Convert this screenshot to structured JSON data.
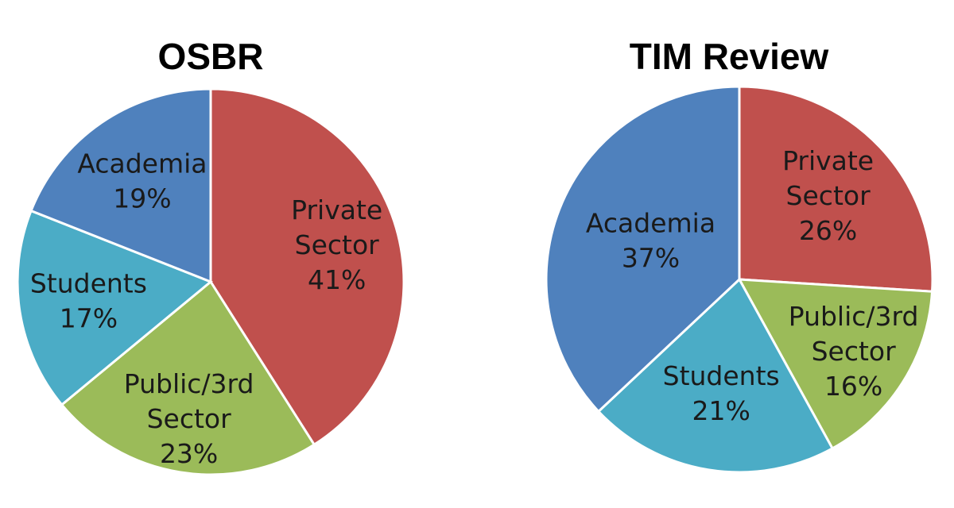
{
  "chart_data": [
    {
      "type": "pie",
      "title": "OSBR",
      "slices": [
        {
          "label_lines": [
            "Private",
            "Sector",
            "41%"
          ],
          "name": "Private Sector",
          "value": 41,
          "color": "#c0504d"
        },
        {
          "label_lines": [
            "Public/3rd",
            "Sector",
            "23%"
          ],
          "name": "Public/3rd Sector",
          "value": 23,
          "color": "#9bbb59"
        },
        {
          "label_lines": [
            "Students",
            "17%"
          ],
          "name": "Students",
          "value": 17,
          "color": "#4bacc6"
        },
        {
          "label_lines": [
            "Academia",
            "19%"
          ],
          "name": "Academia",
          "value": 19,
          "color": "#4f81bd"
        }
      ]
    },
    {
      "type": "pie",
      "title": "TIM Review",
      "slices": [
        {
          "label_lines": [
            "Private",
            "Sector",
            "26%"
          ],
          "name": "Private Sector",
          "value": 26,
          "color": "#c0504d"
        },
        {
          "label_lines": [
            "Public/3rd",
            "Sector",
            "16%"
          ],
          "name": "Public/3rd Sector",
          "value": 16,
          "color": "#9bbb59"
        },
        {
          "label_lines": [
            "Students",
            "21%"
          ],
          "name": "Students",
          "value": 21,
          "color": "#4bacc6"
        },
        {
          "label_lines": [
            "Academia",
            "37%"
          ],
          "name": "Academia",
          "value": 37,
          "color": "#4f81bd"
        }
      ]
    }
  ]
}
